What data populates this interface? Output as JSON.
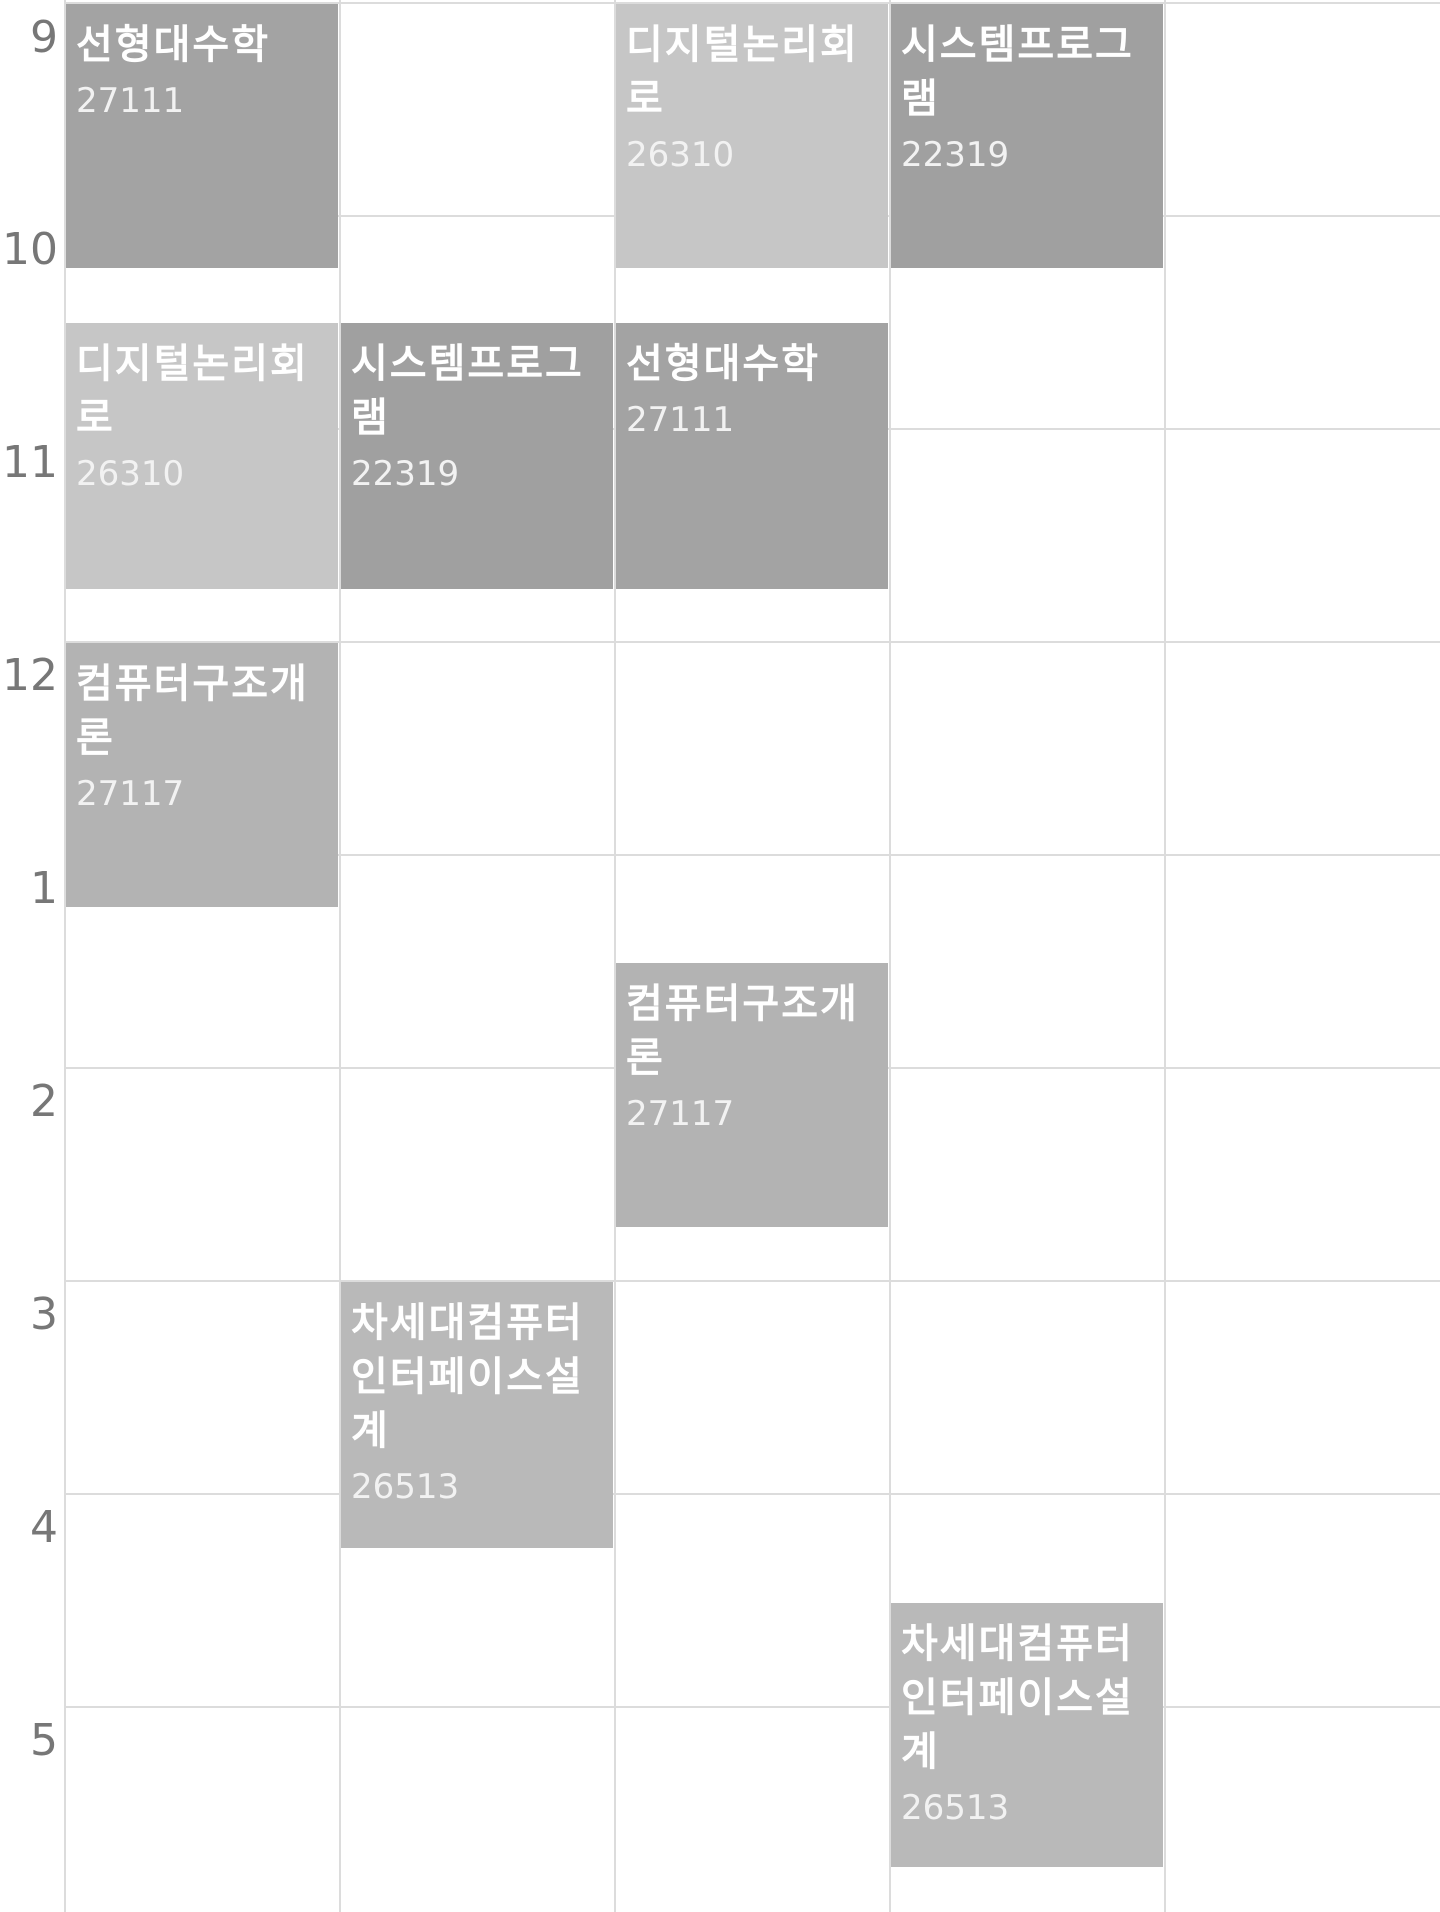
{
  "hour_labels": [
    "9",
    "10",
    "11",
    "12",
    "1",
    "2",
    "3",
    "4",
    "5"
  ],
  "colors": {
    "background": "#ffffff",
    "grid": "#dcdcdc",
    "hour_text": "#777777",
    "course_text": "#ffffff",
    "linear_algebra": "#a3a3a3",
    "digital_logic": "#c6c6c6",
    "system_programming": "#a0a0a0",
    "computer_architecture": "#b3b3b3",
    "next_gen_interface": "#b9b9b9"
  },
  "courses": [
    {
      "name": "선형대수학",
      "code": "27111"
    },
    {
      "name": "디지털논리회로",
      "code": "26310"
    },
    {
      "name": "시스템프로그램",
      "code": "22319"
    },
    {
      "name": "디지털논리회로",
      "code": "26310"
    },
    {
      "name": "시스템프로그램",
      "code": "22319"
    },
    {
      "name": "선형대수학",
      "code": "27111"
    },
    {
      "name": "컴퓨터구조개론",
      "code": "27117"
    },
    {
      "name": "컴퓨터구조개론",
      "code": "27117"
    },
    {
      "name": "차세대컴퓨터인터페이스설계",
      "code": "26513"
    },
    {
      "name": "차세대컴퓨터인터페이스설계",
      "code": "26513"
    }
  ]
}
